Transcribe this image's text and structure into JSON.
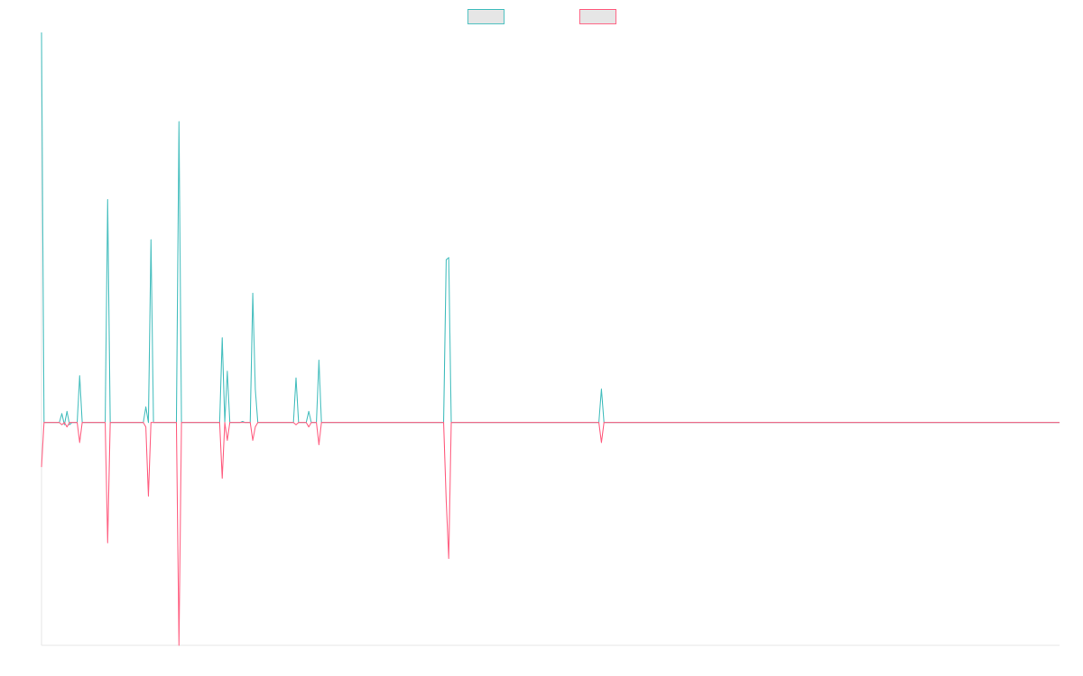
{
  "chart_data": {
    "type": "line",
    "title": "",
    "xlabel": "",
    "ylabel": "",
    "grid": false,
    "legend": "top-center",
    "ylim": [
      -1.0,
      1.75
    ],
    "x_count": 400,
    "series": [
      {
        "color": "#4bc0c0",
        "fill": "#e6e6e6",
        "points": [
          [
            0,
            1.75
          ],
          [
            1,
            0
          ],
          [
            7,
            0
          ],
          [
            8,
            0.04
          ],
          [
            9,
            -0.01
          ],
          [
            10,
            0.05
          ],
          [
            11,
            -0.01
          ],
          [
            12,
            0
          ],
          [
            14,
            0
          ],
          [
            15,
            0.21
          ],
          [
            16,
            0
          ],
          [
            25,
            0
          ],
          [
            26,
            1.0
          ],
          [
            27,
            0
          ],
          [
            40,
            0
          ],
          [
            41,
            0.07
          ],
          [
            42,
            0
          ],
          [
            43,
            0.82
          ],
          [
            44,
            0
          ],
          [
            53,
            0
          ],
          [
            54,
            1.35
          ],
          [
            55,
            0
          ],
          [
            70,
            0
          ],
          [
            71,
            0.38
          ],
          [
            72,
            0
          ],
          [
            73,
            0.23
          ],
          [
            74,
            0
          ],
          [
            78,
            0
          ],
          [
            79,
            0.005
          ],
          [
            80,
            0
          ],
          [
            82,
            0
          ],
          [
            83,
            0.58
          ],
          [
            84,
            0.15
          ],
          [
            85,
            0
          ],
          [
            99,
            0
          ],
          [
            100,
            0.2
          ],
          [
            101,
            0
          ],
          [
            104,
            0
          ],
          [
            105,
            0.05
          ],
          [
            106,
            0
          ],
          [
            108,
            0
          ],
          [
            109,
            0.28
          ],
          [
            110,
            0
          ],
          [
            158,
            0
          ],
          [
            159,
            0.73
          ],
          [
            160,
            0.74
          ],
          [
            161,
            0
          ],
          [
            219,
            0
          ],
          [
            220,
            0.15
          ],
          [
            221,
            0
          ],
          [
            400,
            0
          ]
        ]
      },
      {
        "color": "#ff6384",
        "fill": "#e6e6e6",
        "points": [
          [
            0,
            -0.2
          ],
          [
            1,
            0
          ],
          [
            7,
            0
          ],
          [
            8,
            -0.01
          ],
          [
            9,
            0
          ],
          [
            10,
            -0.02
          ],
          [
            11,
            0
          ],
          [
            14,
            0
          ],
          [
            15,
            -0.09
          ],
          [
            16,
            0
          ],
          [
            25,
            0
          ],
          [
            26,
            -0.54
          ],
          [
            27,
            0
          ],
          [
            40,
            0
          ],
          [
            41,
            -0.02
          ],
          [
            42,
            -0.33
          ],
          [
            43,
            0
          ],
          [
            53,
            0
          ],
          [
            54,
            -1.0
          ],
          [
            55,
            0
          ],
          [
            70,
            0
          ],
          [
            71,
            -0.25
          ],
          [
            72,
            0
          ],
          [
            73,
            -0.08
          ],
          [
            74,
            0
          ],
          [
            82,
            0
          ],
          [
            83,
            -0.08
          ],
          [
            84,
            -0.02
          ],
          [
            85,
            0
          ],
          [
            99,
            0
          ],
          [
            100,
            -0.01
          ],
          [
            101,
            0
          ],
          [
            104,
            0
          ],
          [
            105,
            -0.02
          ],
          [
            106,
            0
          ],
          [
            108,
            0
          ],
          [
            109,
            -0.1
          ],
          [
            110,
            0
          ],
          [
            158,
            0
          ],
          [
            159,
            -0.35
          ],
          [
            160,
            -0.61
          ],
          [
            161,
            0
          ],
          [
            219,
            0
          ],
          [
            220,
            -0.09
          ],
          [
            221,
            0
          ],
          [
            400,
            0
          ]
        ]
      }
    ]
  }
}
